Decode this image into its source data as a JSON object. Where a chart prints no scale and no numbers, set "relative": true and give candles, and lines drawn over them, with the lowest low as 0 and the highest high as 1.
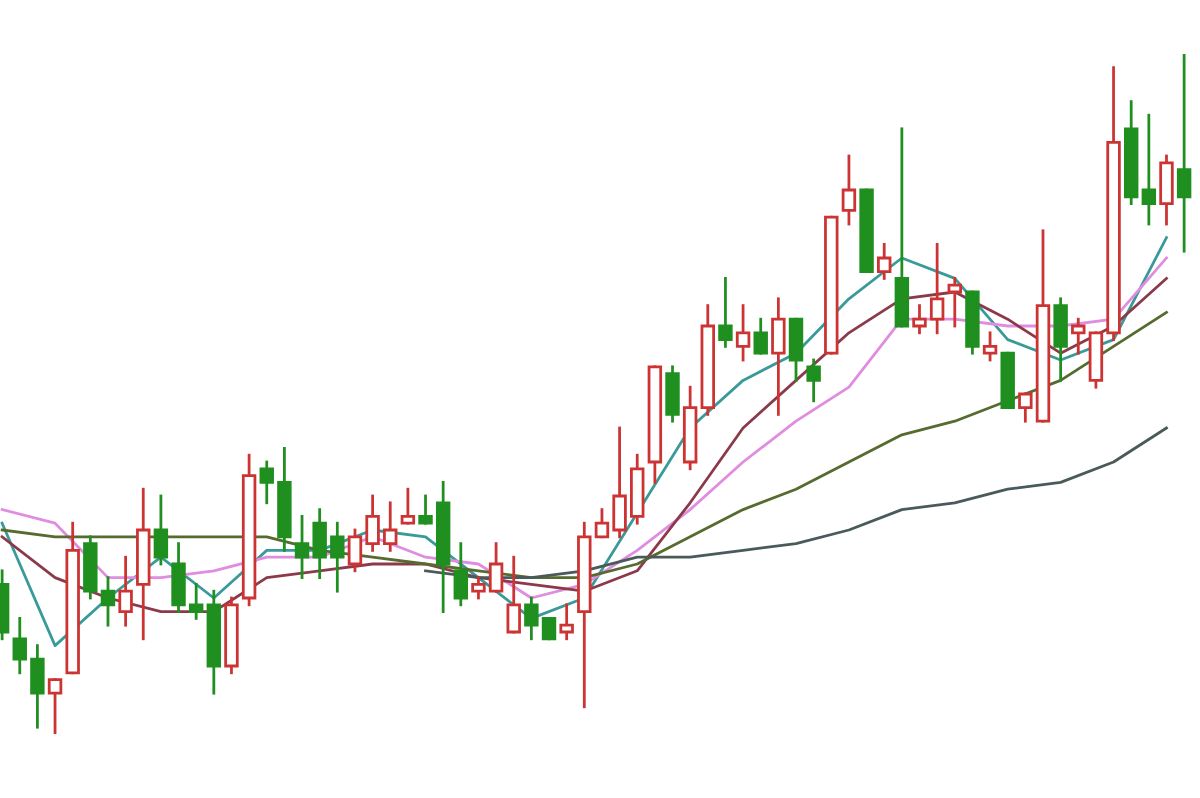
{
  "chart_data": {
    "type": "candlestick",
    "relative": true,
    "categories": [
      null,
      null,
      null,
      null,
      null,
      null,
      null,
      null,
      null,
      null,
      null,
      null,
      null,
      null,
      null,
      null,
      null,
      null,
      null,
      null,
      null,
      null,
      null,
      null,
      null,
      null,
      null,
      null,
      null,
      null,
      null,
      null,
      null,
      null,
      null,
      null,
      null,
      null,
      null,
      null,
      null,
      null,
      null,
      null,
      null,
      null,
      null,
      null,
      null,
      null,
      null,
      null,
      null,
      null,
      null,
      null,
      null,
      null,
      null,
      null,
      null,
      null,
      null,
      null,
      null,
      null,
      null,
      null
    ],
    "ohlc": [
      [
        0.22,
        0.24,
        0.14,
        0.15
      ],
      [
        0.14,
        0.17,
        0.09,
        0.11
      ],
      [
        0.11,
        0.13,
        0.01,
        0.06
      ],
      [
        0.06,
        0.08,
        0,
        0.08
      ],
      [
        0.09,
        0.31,
        0.09,
        0.27
      ],
      [
        0.28,
        0.29,
        0.2,
        0.21
      ],
      [
        0.21,
        0.23,
        0.16,
        0.19
      ],
      [
        0.18,
        0.26,
        0.16,
        0.21
      ],
      [
        0.22,
        0.36,
        0.14,
        0.3
      ],
      [
        0.3,
        0.35,
        0.25,
        0.26
      ],
      [
        0.25,
        0.28,
        0.18,
        0.19
      ],
      [
        0.19,
        0.22,
        0.17,
        0.18
      ],
      [
        0.19,
        0.21,
        0.06,
        0.1
      ],
      [
        0.1,
        0.2,
        0.09,
        0.19
      ],
      [
        0.2,
        0.41,
        0.19,
        0.38
      ],
      [
        0.39,
        0.4,
        0.34,
        0.37
      ],
      [
        0.37,
        0.42,
        0.27,
        0.29
      ],
      [
        0.28,
        0.32,
        0.23,
        0.26
      ],
      [
        0.31,
        0.33,
        0.23,
        0.26
      ],
      [
        0.29,
        0.31,
        0.21,
        0.26
      ],
      [
        0.25,
        0.3,
        0.24,
        0.29
      ],
      [
        0.28,
        0.35,
        0.27,
        0.32
      ],
      [
        0.28,
        0.34,
        0.27,
        0.3
      ],
      [
        0.31,
        0.36,
        0.31,
        0.32
      ],
      [
        0.32,
        0.35,
        0.31,
        0.31
      ],
      [
        0.34,
        0.37,
        0.18,
        0.25
      ],
      [
        0.24,
        0.28,
        0.19,
        0.2
      ],
      [
        0.21,
        0.23,
        0.2,
        0.22
      ],
      [
        0.21,
        0.28,
        0.21,
        0.25
      ],
      [
        0.15,
        0.26,
        0.15,
        0.19
      ],
      [
        0.19,
        0.2,
        0.14,
        0.16
      ],
      [
        0.17,
        0.17,
        0.14,
        0.14
      ],
      [
        0.15,
        0.19,
        0.14,
        0.16
      ],
      [
        0.18,
        0.31,
        0.04,
        0.29
      ],
      [
        0.29,
        0.33,
        0.29,
        0.31
      ],
      [
        0.3,
        0.45,
        0.29,
        0.35
      ],
      [
        0.32,
        0.41,
        0.31,
        0.39
      ],
      [
        0.4,
        0.54,
        0.37,
        0.54
      ],
      [
        0.53,
        0.54,
        0.46,
        0.47
      ],
      [
        0.4,
        0.51,
        0.39,
        0.48
      ],
      [
        0.48,
        0.63,
        0.47,
        0.6
      ],
      [
        0.6,
        0.67,
        0.57,
        0.58
      ],
      [
        0.57,
        0.63,
        0.55,
        0.59
      ],
      [
        0.59,
        0.61,
        0.56,
        0.56
      ],
      [
        0.56,
        0.64,
        0.47,
        0.61
      ],
      [
        0.61,
        0.61,
        0.52,
        0.55
      ],
      [
        0.54,
        0.55,
        0.49,
        0.52
      ],
      [
        0.56,
        0.76,
        0.56,
        0.76
      ],
      [
        0.77,
        0.85,
        0.75,
        0.8
      ],
      [
        0.8,
        0.8,
        0.68,
        0.68
      ],
      [
        0.68,
        0.72,
        0.67,
        0.7
      ],
      [
        0.67,
        0.89,
        0.6,
        0.6
      ],
      [
        0.6,
        0.63,
        0.59,
        0.61
      ],
      [
        0.61,
        0.72,
        0.59,
        0.64
      ],
      [
        0.65,
        0.67,
        0.6,
        0.66
      ],
      [
        0.65,
        0.65,
        0.56,
        0.57
      ],
      [
        0.56,
        0.59,
        0.55,
        0.57
      ],
      [
        0.56,
        0.56,
        0.48,
        0.48
      ],
      [
        0.48,
        0.5,
        0.46,
        0.5
      ],
      [
        0.46,
        0.74,
        0.46,
        0.63
      ],
      [
        0.63,
        0.64,
        0.52,
        0.57
      ],
      [
        0.59,
        0.61,
        0.56,
        0.6
      ],
      [
        0.52,
        0.59,
        0.51,
        0.59
      ],
      [
        0.59,
        0.98,
        0.58,
        0.87
      ],
      [
        0.89,
        0.93,
        0.78,
        0.79
      ],
      [
        0.8,
        0.91,
        0.75,
        0.78
      ],
      [
        0.78,
        0.85,
        0.75,
        0.84
      ],
      [
        0.83,
        1,
        0.71,
        0.79
      ]
    ],
    "colors": [
      "#1f8f1f",
      "#1f8f1f",
      "#1f8f1f",
      "#cc3333",
      "#cc3333",
      "#1f8f1f",
      "#1f8f1f",
      "#cc3333",
      "#cc3333",
      "#1f8f1f",
      "#1f8f1f",
      "#1f8f1f",
      "#1f8f1f",
      "#cc3333",
      "#cc3333",
      "#1f8f1f",
      "#1f8f1f",
      "#1f8f1f",
      "#1f8f1f",
      "#1f8f1f",
      "#cc3333",
      "#cc3333",
      "#cc3333",
      "#cc3333",
      "#1f8f1f",
      "#1f8f1f",
      "#1f8f1f",
      "#cc3333",
      "#cc3333",
      "#cc3333",
      "#1f8f1f",
      "#1f8f1f",
      "#cc3333",
      "#cc3333",
      "#cc3333",
      "#cc3333",
      "#cc3333",
      "#cc3333",
      "#1f8f1f",
      "#cc3333",
      "#cc3333",
      "#1f8f1f",
      "#cc3333",
      "#1f8f1f",
      "#cc3333",
      "#1f8f1f",
      "#1f8f1f",
      "#cc3333",
      "#cc3333",
      "#1f8f1f",
      "#cc3333",
      "#1f8f1f",
      "#cc3333",
      "#cc3333",
      "#cc3333",
      "#1f8f1f",
      "#cc3333",
      "#1f8f1f",
      "#cc3333",
      "#cc3333",
      "#1f8f1f",
      "#cc3333",
      "#cc3333",
      "#cc3333",
      "#1f8f1f",
      "#1f8f1f",
      "#cc3333",
      "#1f8f1f"
    ],
    "series": [
      {
        "type": "line",
        "color": "#3a9a9a",
        "values": [
          0.31,
          null,
          null,
          0.13,
          null,
          null,
          0.2,
          null,
          null,
          0.26,
          null,
          null,
          0.2,
          null,
          null,
          0.27,
          null,
          null,
          0.27,
          null,
          null,
          0.3,
          null,
          null,
          0.29,
          null,
          null,
          0.23,
          null,
          null,
          0.17,
          null,
          null,
          0.2,
          null,
          null,
          null,
          null,
          null,
          0.45,
          null,
          null,
          0.52,
          null,
          null,
          0.56,
          null,
          null,
          0.64,
          null,
          null,
          0.7,
          null,
          null,
          0.67,
          null,
          null,
          0.58,
          null,
          null,
          0.55,
          null,
          null,
          0.58,
          null,
          null,
          0.73,
          null
        ]
      },
      {
        "type": "line",
        "color": "#e08ce0",
        "values": [
          0.33,
          null,
          null,
          0.31,
          null,
          null,
          0.23,
          null,
          null,
          0.23,
          null,
          null,
          0.24,
          null,
          null,
          0.26,
          null,
          null,
          0.26,
          null,
          null,
          0.29,
          null,
          null,
          0.26,
          null,
          null,
          0.25,
          null,
          null,
          0.2,
          null,
          null,
          0.22,
          null,
          null,
          0.27,
          null,
          null,
          0.33,
          null,
          null,
          0.4,
          null,
          null,
          0.46,
          null,
          null,
          0.51,
          null,
          null,
          0.61,
          null,
          null,
          0.61,
          null,
          null,
          0.6,
          null,
          null,
          0.6,
          null,
          null,
          0.61,
          null,
          null,
          0.7,
          null
        ]
      },
      {
        "type": "line",
        "color": "#8b3a4a",
        "values": [
          0.29,
          null,
          null,
          0.23,
          null,
          null,
          0.2,
          null,
          null,
          0.18,
          null,
          null,
          0.18,
          null,
          null,
          0.23,
          null,
          null,
          0.24,
          null,
          null,
          0.25,
          null,
          null,
          0.25,
          null,
          null,
          0.23,
          null,
          null,
          0.22,
          null,
          null,
          0.21,
          null,
          null,
          0.24,
          null,
          null,
          0.34,
          null,
          null,
          0.45,
          null,
          null,
          0.52,
          null,
          null,
          0.59,
          null,
          null,
          0.64,
          null,
          null,
          0.65,
          null,
          null,
          0.61,
          null,
          null,
          0.56,
          null,
          null,
          0.6,
          null,
          null,
          0.67,
          null
        ]
      },
      {
        "type": "line",
        "color": "#556b2f",
        "values": [
          0.3,
          null,
          null,
          0.29,
          null,
          null,
          0.29,
          null,
          null,
          0.29,
          null,
          null,
          0.29,
          null,
          null,
          0.29,
          null,
          null,
          0.27,
          null,
          null,
          0.26,
          null,
          null,
          0.25,
          null,
          null,
          0.24,
          null,
          null,
          0.23,
          null,
          null,
          0.23,
          null,
          null,
          0.25,
          null,
          null,
          0.29,
          null,
          null,
          0.33,
          null,
          null,
          0.36,
          null,
          null,
          0.4,
          null,
          null,
          0.44,
          null,
          null,
          0.46,
          null,
          null,
          0.49,
          null,
          null,
          0.52,
          null,
          null,
          0.57,
          null,
          null,
          0.62,
          null
        ]
      },
      {
        "type": "line",
        "color": "#4a5a5a",
        "values": [
          null,
          null,
          null,
          null,
          null,
          null,
          null,
          null,
          null,
          null,
          null,
          null,
          null,
          null,
          null,
          null,
          null,
          null,
          null,
          null,
          null,
          null,
          null,
          null,
          0.24,
          null,
          null,
          0.23,
          null,
          null,
          0.23,
          null,
          null,
          0.24,
          null,
          null,
          0.26,
          null,
          null,
          0.26,
          null,
          null,
          0.27,
          null,
          null,
          0.28,
          null,
          null,
          0.3,
          null,
          null,
          0.33,
          null,
          null,
          0.34,
          null,
          null,
          0.36,
          null,
          null,
          0.37,
          null,
          null,
          0.4,
          null,
          null,
          0.45,
          null
        ]
      }
    ]
  }
}
